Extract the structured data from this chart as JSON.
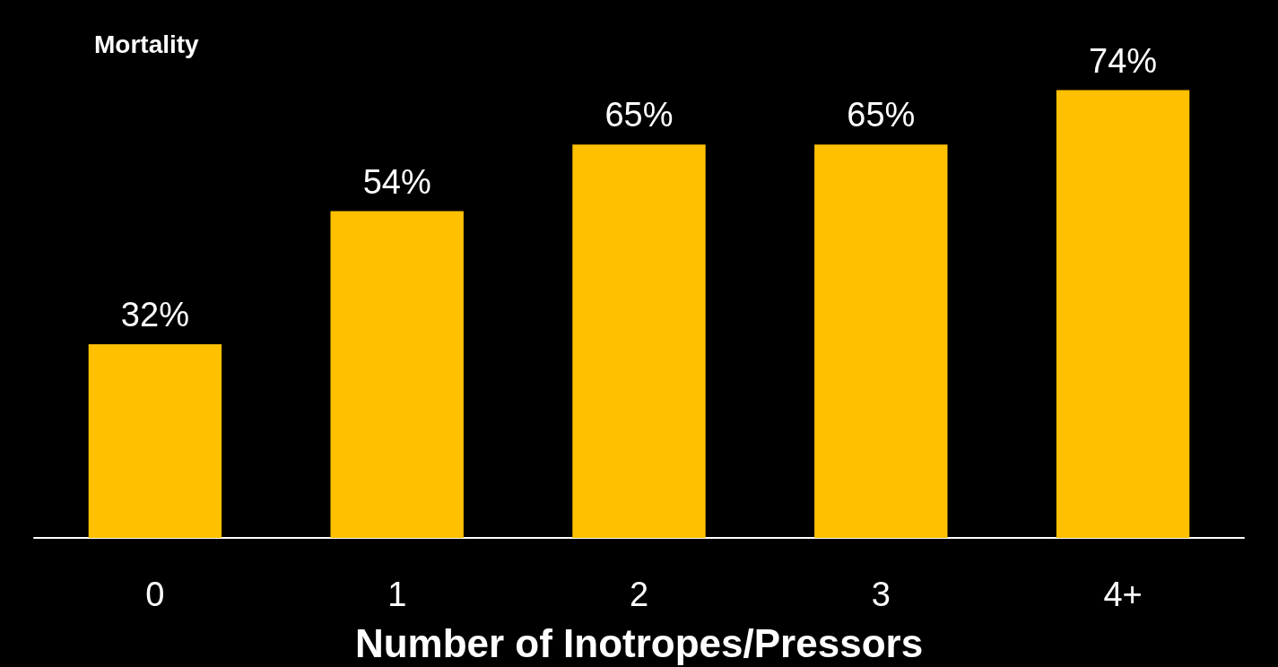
{
  "chart_data": {
    "type": "bar",
    "title": "Mortality",
    "xlabel": "Number of Inotropes/Pressors",
    "categories": [
      "0",
      "1",
      "2",
      "3",
      "4+"
    ],
    "values": [
      32,
      54,
      65,
      65,
      74
    ],
    "value_labels": [
      "32%",
      "54%",
      "65%",
      "65%",
      "74%"
    ],
    "color": "#ffc000"
  }
}
